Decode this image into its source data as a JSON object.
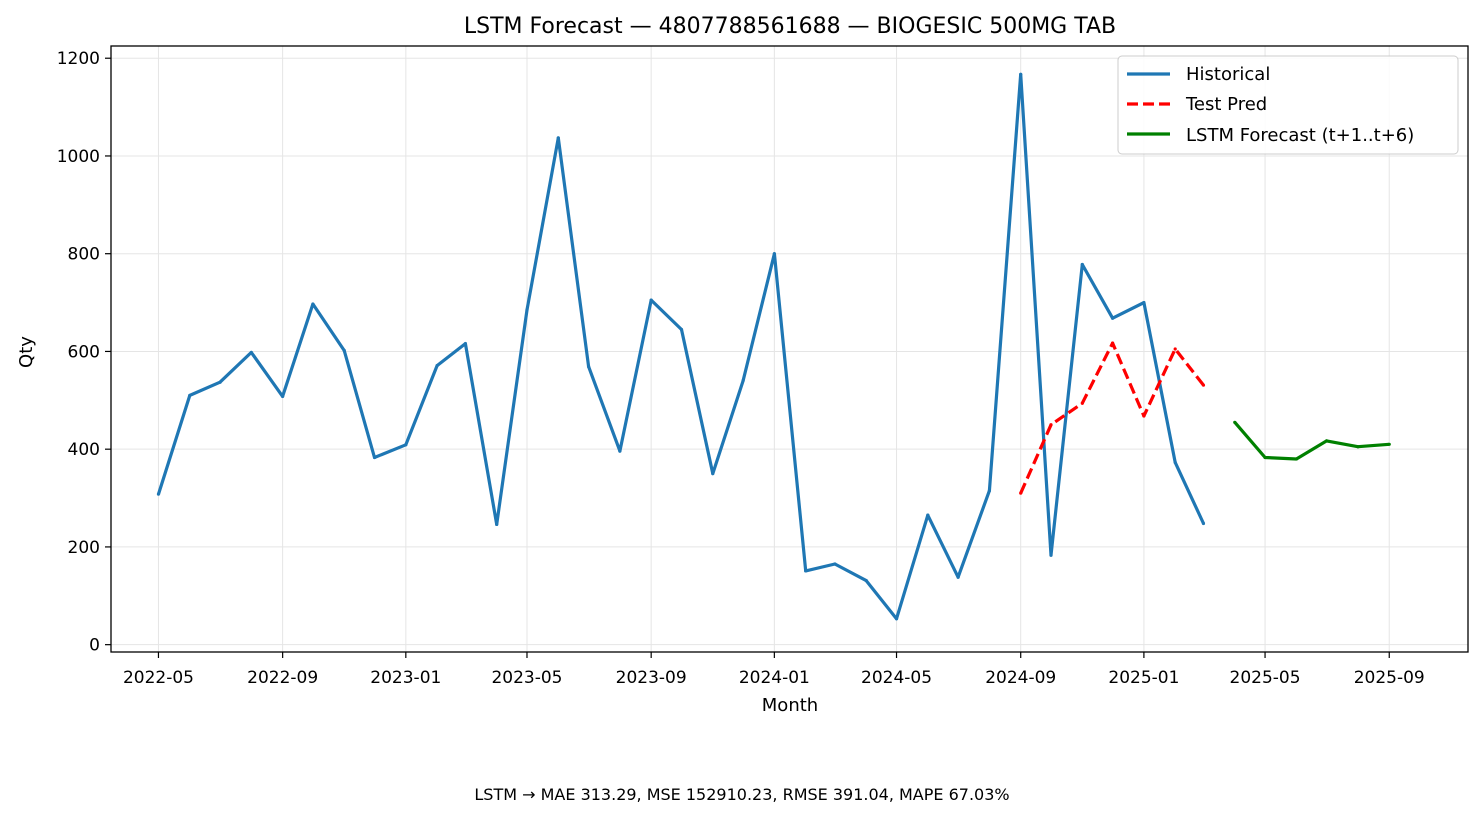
{
  "chart_data": {
    "type": "line",
    "title": "LSTM Forecast — 4807788561688 — BIOGESIC 500MG TAB",
    "xlabel": "Month",
    "ylabel": "Qty",
    "xlim": [
      "2022-03-15",
      "2025-11-18"
    ],
    "ylim": [
      -15,
      1225
    ],
    "x_ticks": [
      "2022-05",
      "2022-09",
      "2023-01",
      "2023-05",
      "2023-09",
      "2024-01",
      "2024-05",
      "2024-09",
      "2025-01",
      "2025-05",
      "2025-09"
    ],
    "y_ticks": [
      0,
      200,
      400,
      600,
      800,
      1000,
      1200
    ],
    "grid": true,
    "legend_position": "upper-right",
    "series": [
      {
        "name": "Historical",
        "color": "#1f77b4",
        "style": "solid",
        "x": [
          "2022-05",
          "2022-06",
          "2022-07",
          "2022-08",
          "2022-09",
          "2022-10",
          "2022-11",
          "2022-12",
          "2023-01",
          "2023-02",
          "2023-03",
          "2023-04",
          "2023-05",
          "2023-06",
          "2023-07",
          "2023-08",
          "2023-09",
          "2023-10",
          "2023-11",
          "2023-12",
          "2024-01",
          "2024-02",
          "2024-03",
          "2024-04",
          "2024-05",
          "2024-06",
          "2024-07",
          "2024-08",
          "2024-09",
          "2024-10",
          "2024-11",
          "2024-12",
          "2025-01",
          "2025-02",
          "2025-03"
        ],
        "values": [
          308,
          510,
          537,
          598,
          508,
          697,
          602,
          383,
          409,
          571,
          616,
          246,
          685,
          1037,
          569,
          396,
          705,
          645,
          350,
          540,
          800,
          151,
          165,
          131,
          53,
          265,
          138,
          315,
          1167,
          183,
          778,
          668,
          700,
          373,
          248
        ]
      },
      {
        "name": "Test Pred",
        "color": "#ff0000",
        "style": "dashed",
        "x": [
          "2024-09",
          "2024-10",
          "2024-11",
          "2024-12",
          "2025-01",
          "2025-02",
          "2025-03"
        ],
        "values": [
          310,
          450,
          494,
          617,
          468,
          605,
          531
        ]
      },
      {
        "name": "LSTM Forecast (t+1..t+6)",
        "color": "#008000",
        "style": "solid",
        "x": [
          "2025-04",
          "2025-05",
          "2025-06",
          "2025-07",
          "2025-08",
          "2025-09"
        ],
        "values": [
          455,
          383,
          380,
          417,
          405,
          410
        ]
      }
    ]
  },
  "footer": {
    "metrics": "LSTM → MAE 313.29, MSE 152910.23, RMSE 391.04, MAPE 67.03%"
  }
}
